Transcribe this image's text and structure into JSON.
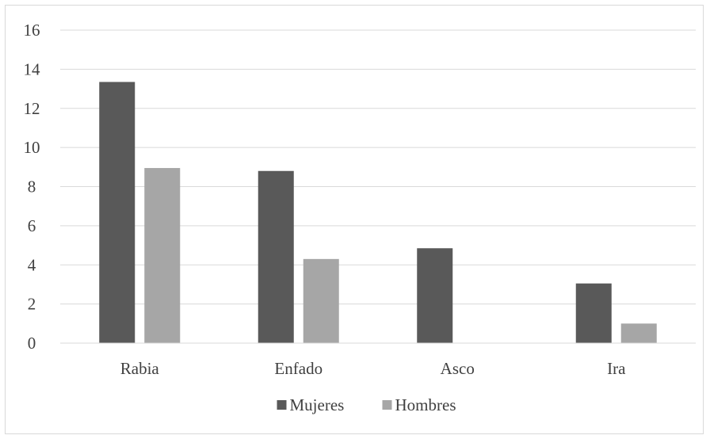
{
  "chart_data": {
    "type": "bar",
    "title": "",
    "xlabel": "",
    "ylabel": "",
    "categories": [
      "Rabia",
      "Enfado",
      "Asco",
      "Ira"
    ],
    "series": [
      {
        "name": "Mujeres",
        "color": "#595959",
        "values": [
          13.35,
          8.8,
          4.85,
          3.05
        ]
      },
      {
        "name": "Hombres",
        "color": "#a6a6a6",
        "values": [
          8.95,
          4.3,
          0,
          1.0
        ]
      }
    ],
    "ylim": [
      0,
      16
    ],
    "yticks": [
      "0",
      "2",
      "4",
      "6",
      "8",
      "10",
      "12",
      "14",
      "16"
    ],
    "grid": true,
    "gridColor": "#d9d9d9",
    "legend_position": "bottom"
  }
}
